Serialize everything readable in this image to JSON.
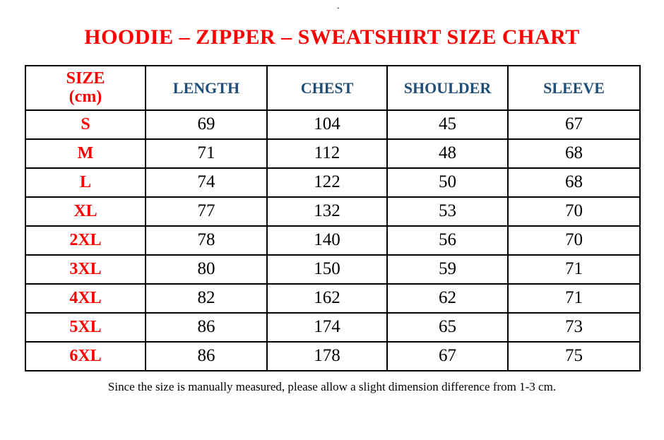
{
  "title": "HOODIE – ZIPPER – SWEATSHIRT SIZE CHART",
  "footnote": "Since the size is manually measured, please allow a slight dimension difference from 1-3 cm.",
  "decorations": {
    "stray_mark": "."
  },
  "colors": {
    "title_red": "#ff0000",
    "header_blue": "#1f4e79",
    "body_text": "#000000",
    "border": "#000000"
  },
  "table": {
    "header": {
      "size_line1": "SIZE",
      "size_line2": "(cm)",
      "columns": [
        "LENGTH",
        "CHEST",
        "SHOULDER",
        "SLEEVE"
      ]
    },
    "rows": [
      {
        "label": "S",
        "values": [
          69,
          104,
          45,
          67
        ]
      },
      {
        "label": "M",
        "values": [
          71,
          112,
          48,
          68
        ]
      },
      {
        "label": "L",
        "values": [
          74,
          122,
          50,
          68
        ]
      },
      {
        "label": "XL",
        "values": [
          77,
          132,
          53,
          70
        ]
      },
      {
        "label": "2XL",
        "values": [
          78,
          140,
          56,
          70
        ]
      },
      {
        "label": "3XL",
        "values": [
          80,
          150,
          59,
          71
        ]
      },
      {
        "label": "4XL",
        "values": [
          82,
          162,
          62,
          71
        ]
      },
      {
        "label": "5XL",
        "values": [
          86,
          174,
          65,
          73
        ]
      },
      {
        "label": "6XL",
        "values": [
          86,
          178,
          67,
          75
        ]
      }
    ]
  }
}
